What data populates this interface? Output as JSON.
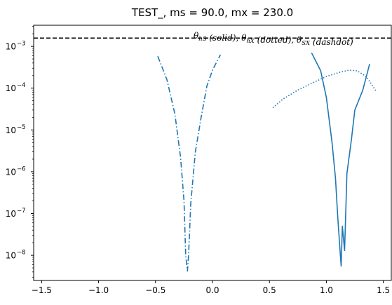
{
  "chart_data": {
    "type": "line",
    "title": "TEST_, ms = 90.0, mx = 230.0",
    "xlabel": "",
    "ylabel": "",
    "xlim": [
      -1.57,
      1.57
    ],
    "ylim": [
      2.5e-09,
      0.0032
    ],
    "yscale": "log",
    "grid": false,
    "legend_placement": "top-right",
    "x_ticks": [
      {
        "value": -1.5,
        "label": "−1.5"
      },
      {
        "value": -1.0,
        "label": "−1.0"
      },
      {
        "value": -0.5,
        "label": "−0.5"
      },
      {
        "value": 0.0,
        "label": "0.0"
      },
      {
        "value": 0.5,
        "label": "0.5"
      },
      {
        "value": 1.0,
        "label": "1.0"
      },
      {
        "value": 1.5,
        "label": "1.5"
      }
    ],
    "y_ticks": [
      {
        "exp": -8,
        "base": "10",
        "sup": "−8"
      },
      {
        "exp": -7,
        "base": "10",
        "sup": "−7"
      },
      {
        "exp": -6,
        "base": "10",
        "sup": "−6"
      },
      {
        "exp": -5,
        "base": "10",
        "sup": "−5"
      },
      {
        "exp": -4,
        "base": "10",
        "sup": "−4"
      },
      {
        "exp": -3,
        "base": "10",
        "sup": "−3"
      }
    ],
    "annotations": [
      {
        "kind": "hline",
        "y": 0.00158,
        "color": "#000000",
        "style": "dashed"
      },
      {
        "kind": "legend-text",
        "parts": [
          {
            "t": "θ",
            "sub": "hS"
          },
          {
            "t": " (solid), "
          },
          {
            "t": "θ",
            "sub": "hX"
          },
          {
            "t": " (dotted), "
          },
          {
            "t": "θ",
            "sub": "SX"
          },
          {
            "t": " (dashdot)"
          }
        ]
      }
    ],
    "series": [
      {
        "style": "solid",
        "color": "#1f77b4",
        "x": [
          0.87,
          0.95,
          1.0,
          1.05,
          1.08,
          1.1,
          1.12,
          1.13,
          1.14,
          1.16,
          1.17,
          1.18,
          1.22,
          1.25,
          1.32,
          1.38
        ],
        "y": [
          0.0007,
          0.00026,
          6e-05,
          5e-06,
          7e-07,
          8e-08,
          1.3e-08,
          5.5e-09,
          5e-08,
          1.3e-08,
          1e-07,
          9e-07,
          6e-06,
          3e-05,
          9e-05,
          0.00038
        ]
      },
      {
        "style": "dotted",
        "color": "#1f77b4",
        "x": [
          0.53,
          0.62,
          0.75,
          0.87,
          1.0,
          1.12,
          1.2,
          1.27,
          1.35,
          1.44
        ],
        "y": [
          3.4e-05,
          5.5e-05,
          9e-05,
          0.00013,
          0.00019,
          0.00024,
          0.00027,
          0.00026,
          0.00019,
          8.2e-05
        ]
      },
      {
        "style": "dashdot",
        "color": "#1f77b4",
        "x": [
          -0.48,
          -0.4,
          -0.33,
          -0.28,
          -0.25,
          -0.235,
          -0.22,
          -0.21,
          -0.19,
          -0.15,
          -0.1,
          -0.05,
          0.0,
          0.07
        ],
        "y": [
          0.00058,
          0.00016,
          2.4e-05,
          2.2e-06,
          2e-07,
          1e-08,
          4.2e-09,
          1e-08,
          1.8e-07,
          3e-06,
          2e-05,
          0.00011,
          0.00027,
          0.00063
        ]
      }
    ]
  }
}
